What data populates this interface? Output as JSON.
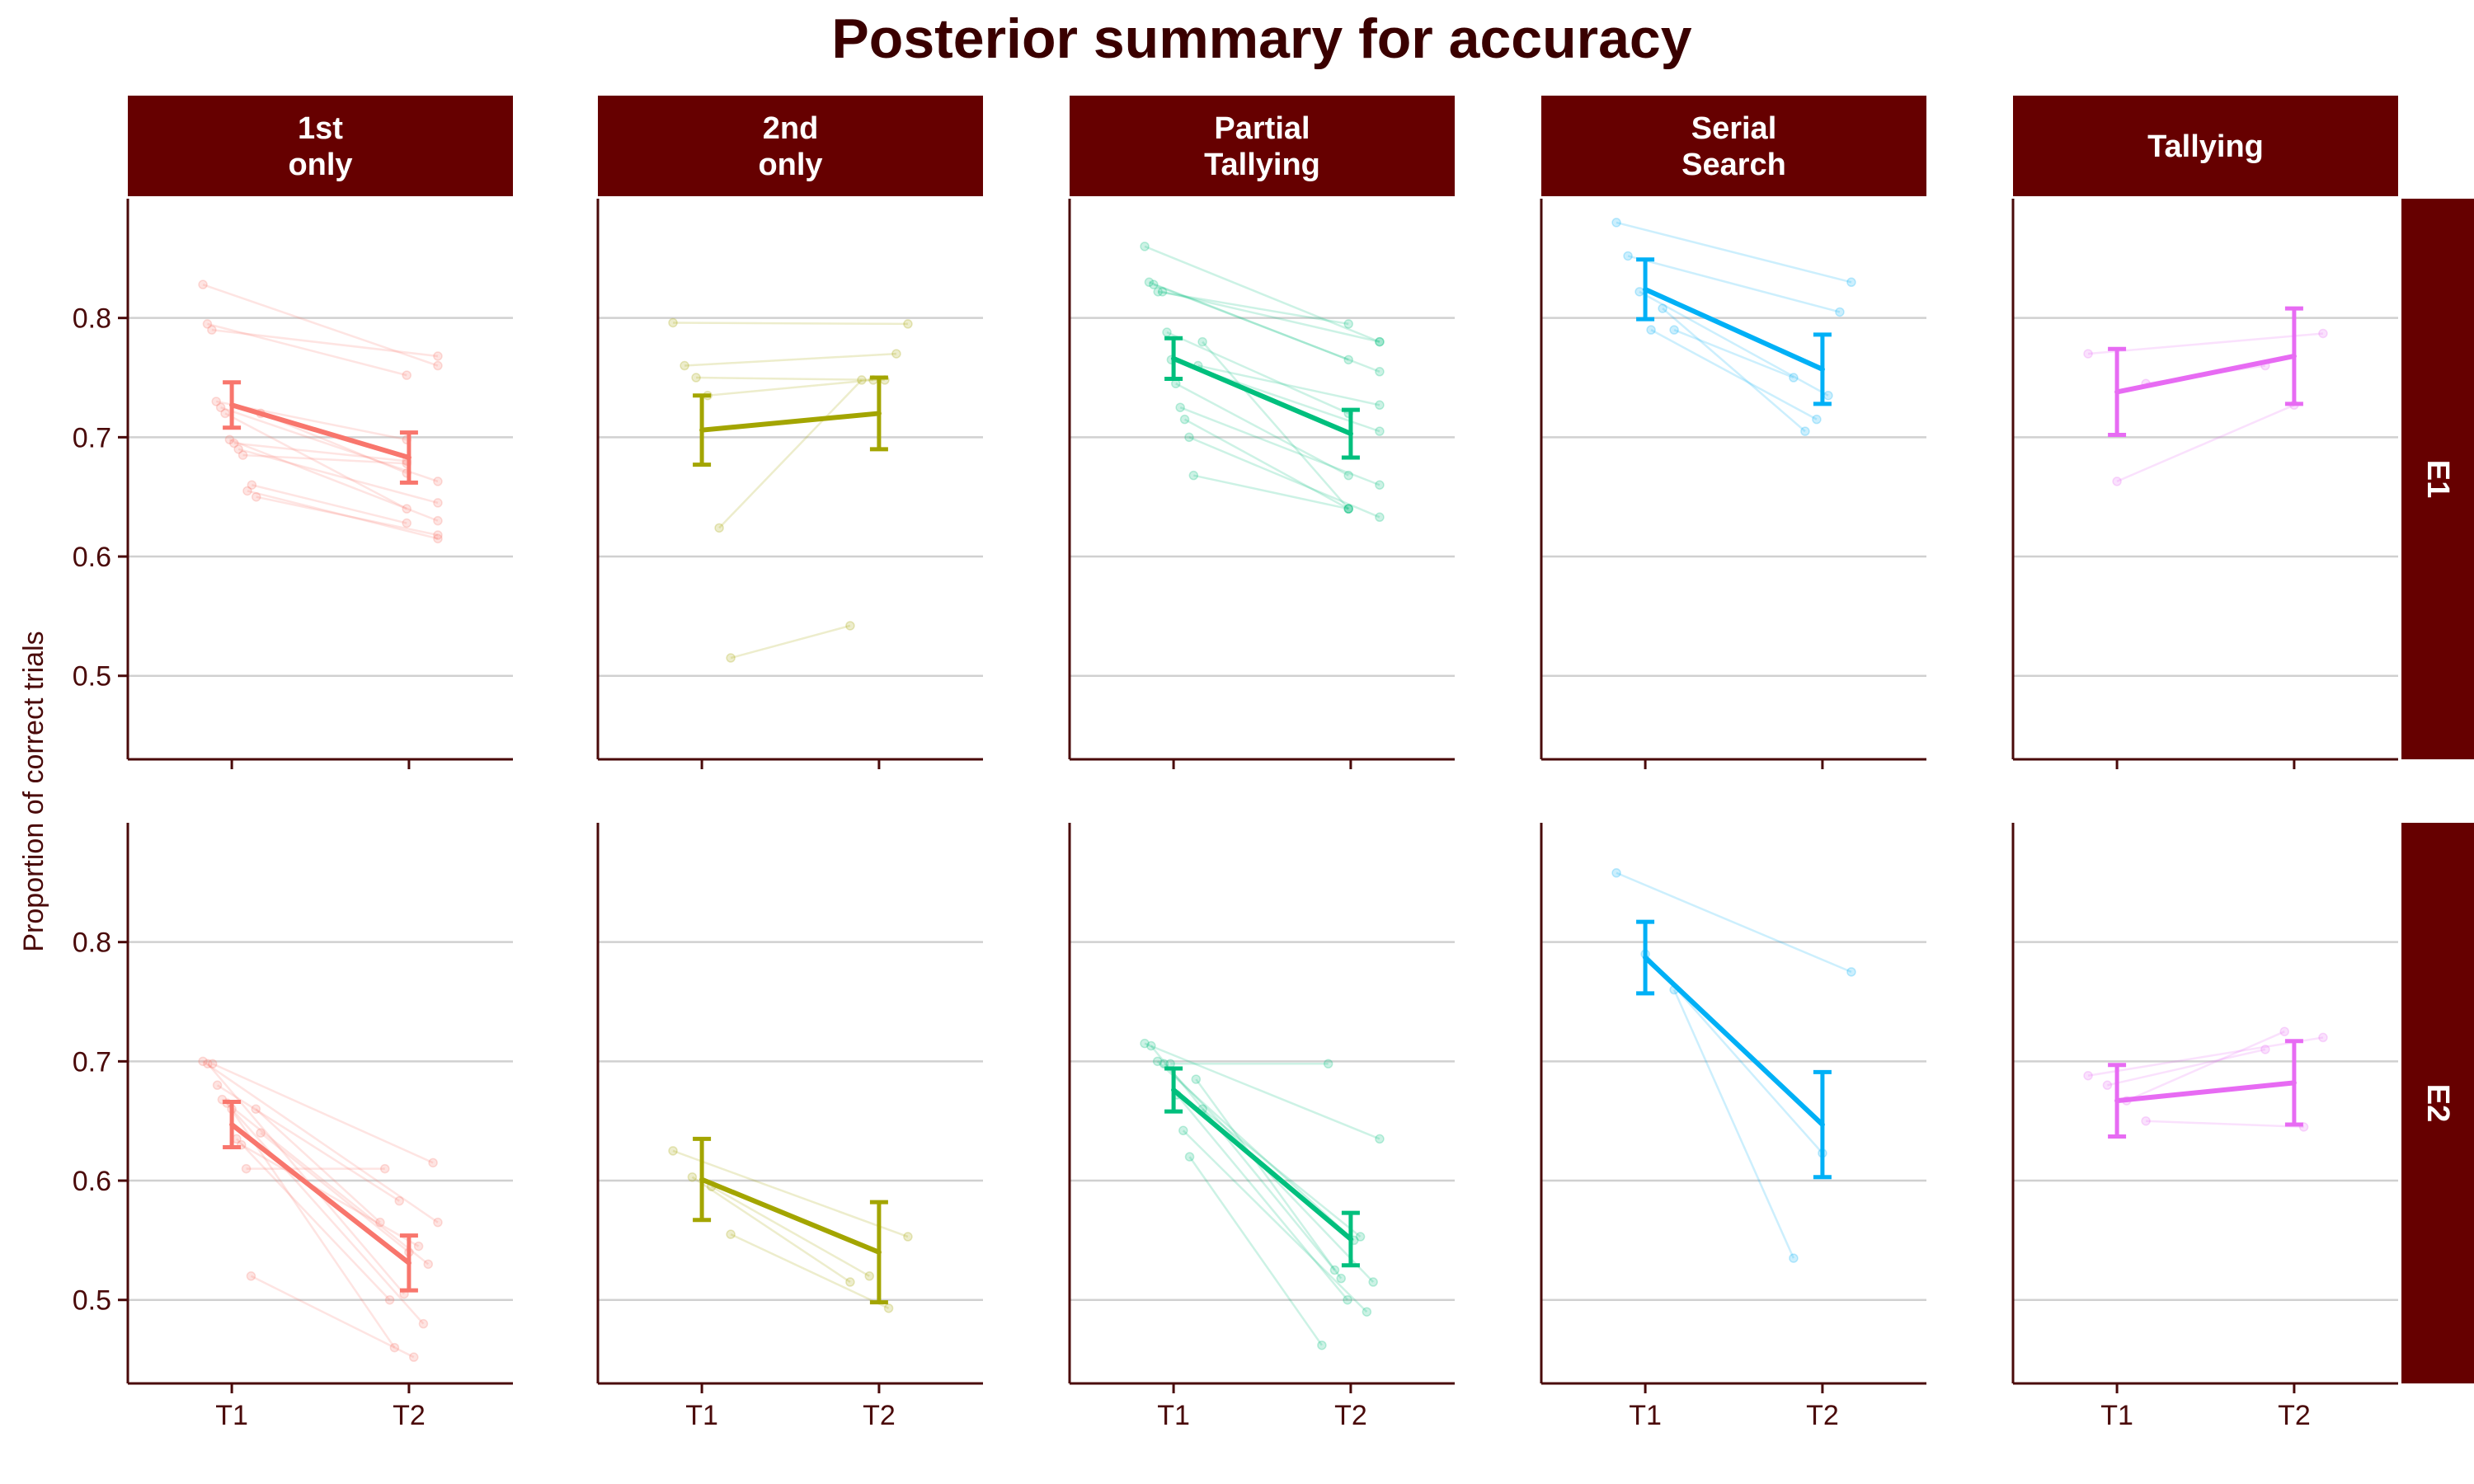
{
  "chart_data": {
    "type": "line",
    "title": "Posterior summary for accuracy",
    "ylabel": "Proportion of correct trials",
    "xlabel": "",
    "x_categories": [
      "T1",
      "T2"
    ],
    "ylim": [
      0.43,
      0.9
    ],
    "yticks": [
      0.5,
      0.6,
      0.7,
      0.8
    ],
    "ytick_labels": [
      "0.5",
      "0.6",
      "0.7",
      "0.8"
    ],
    "grid": "horizontal",
    "legend": "none",
    "colors": {
      "1st only": "#F8766D",
      "2nd only": "#A3A500",
      "Partial Tallying": "#00BF7D",
      "Serial Search": "#00B0F6",
      "Tallying": "#E76BF3",
      "strip_background": "#660000",
      "axis": "#4a0a0a",
      "grid": "#d0d0d0"
    },
    "columns": [
      {
        "key": "1st only",
        "label_lines": [
          "1st",
          "only"
        ]
      },
      {
        "key": "2nd only",
        "label_lines": [
          "2nd",
          "only"
        ]
      },
      {
        "key": "Partial Tallying",
        "label_lines": [
          "Partial",
          "Tallying"
        ]
      },
      {
        "key": "Serial Search",
        "label_lines": [
          "Serial",
          "Search"
        ]
      },
      {
        "key": "Tallying",
        "label_lines": [
          "Tallying"
        ]
      }
    ],
    "rows": [
      "E1",
      "E2"
    ],
    "panels": [
      {
        "row": "E1",
        "column": "1st only",
        "summary": {
          "T1": {
            "mean": 0.727,
            "lower": 0.708,
            "upper": 0.746
          },
          "T2": {
            "mean": 0.683,
            "lower": 0.662,
            "upper": 0.704
          }
        },
        "participants": [
          [
            0.828,
            0.76
          ],
          [
            0.795,
            0.752
          ],
          [
            0.79,
            0.768
          ],
          [
            0.73,
            0.698
          ],
          [
            0.725,
            0.663
          ],
          [
            0.72,
            0.64
          ],
          [
            0.698,
            0.63
          ],
          [
            0.695,
            0.68
          ],
          [
            0.69,
            0.645
          ],
          [
            0.685,
            0.678
          ],
          [
            0.655,
            0.615
          ],
          [
            0.66,
            0.628
          ],
          [
            0.65,
            0.618
          ],
          [
            0.72,
            0.67
          ]
        ]
      },
      {
        "row": "E1",
        "column": "2nd only",
        "summary": {
          "T1": {
            "mean": 0.706,
            "lower": 0.677,
            "upper": 0.735
          },
          "T2": {
            "mean": 0.72,
            "lower": 0.69,
            "upper": 0.75
          }
        },
        "participants": [
          [
            0.796,
            0.795
          ],
          [
            0.76,
            0.77
          ],
          [
            0.75,
            0.748
          ],
          [
            0.735,
            0.748
          ],
          [
            0.624,
            0.748
          ],
          [
            0.515,
            0.542
          ]
        ]
      },
      {
        "row": "E1",
        "column": "Partial Tallying",
        "summary": {
          "T1": {
            "mean": 0.766,
            "lower": 0.749,
            "upper": 0.783
          },
          "T2": {
            "mean": 0.703,
            "lower": 0.683,
            "upper": 0.723
          }
        },
        "participants": [
          [
            0.86,
            0.78
          ],
          [
            0.83,
            0.765
          ],
          [
            0.828,
            0.755
          ],
          [
            0.822,
            0.795
          ],
          [
            0.822,
            0.78
          ],
          [
            0.788,
            0.72
          ],
          [
            0.765,
            0.705
          ],
          [
            0.745,
            0.668
          ],
          [
            0.725,
            0.66
          ],
          [
            0.715,
            0.64
          ],
          [
            0.7,
            0.633
          ],
          [
            0.668,
            0.64
          ],
          [
            0.76,
            0.727
          ],
          [
            0.78,
            0.64
          ]
        ]
      },
      {
        "row": "E1",
        "column": "Serial Search",
        "summary": {
          "T1": {
            "mean": 0.824,
            "lower": 0.799,
            "upper": 0.849
          },
          "T2": {
            "mean": 0.757,
            "lower": 0.728,
            "upper": 0.786
          }
        },
        "participants": [
          [
            0.88,
            0.83
          ],
          [
            0.852,
            0.805
          ],
          [
            0.822,
            0.735
          ],
          [
            0.79,
            0.715
          ],
          [
            0.808,
            0.705
          ],
          [
            0.79,
            0.75
          ]
        ]
      },
      {
        "row": "E1",
        "column": "Tallying",
        "summary": {
          "T1": {
            "mean": 0.738,
            "lower": 0.702,
            "upper": 0.774
          },
          "T2": {
            "mean": 0.768,
            "lower": 0.728,
            "upper": 0.808
          }
        },
        "participants": [
          [
            0.77,
            0.787
          ],
          [
            0.663,
            0.727
          ],
          [
            0.745,
            0.76
          ]
        ]
      },
      {
        "row": "E2",
        "column": "1st only",
        "summary": {
          "T1": {
            "mean": 0.647,
            "lower": 0.628,
            "upper": 0.666
          },
          "T2": {
            "mean": 0.531,
            "lower": 0.508,
            "upper": 0.554
          }
        },
        "participants": [
          [
            0.7,
            0.565
          ],
          [
            0.698,
            0.505
          ],
          [
            0.698,
            0.615
          ],
          [
            0.68,
            0.583
          ],
          [
            0.668,
            0.53
          ],
          [
            0.665,
            0.46
          ],
          [
            0.66,
            0.48
          ],
          [
            0.635,
            0.5
          ],
          [
            0.63,
            0.545
          ],
          [
            0.61,
            0.61
          ],
          [
            0.52,
            0.452
          ],
          [
            0.66,
            0.565
          ],
          [
            0.64,
            0.54
          ]
        ]
      },
      {
        "row": "E2",
        "column": "2nd only",
        "summary": {
          "T1": {
            "mean": 0.601,
            "lower": 0.567,
            "upper": 0.635
          },
          "T2": {
            "mean": 0.54,
            "lower": 0.498,
            "upper": 0.582
          }
        },
        "participants": [
          [
            0.625,
            0.553
          ],
          [
            0.603,
            0.515
          ],
          [
            0.595,
            0.52
          ],
          [
            0.555,
            0.493
          ]
        ]
      },
      {
        "row": "E2",
        "column": "Partial Tallying",
        "summary": {
          "T1": {
            "mean": 0.676,
            "lower": 0.658,
            "upper": 0.694
          },
          "T2": {
            "mean": 0.551,
            "lower": 0.529,
            "upper": 0.573
          }
        },
        "participants": [
          [
            0.715,
            0.635
          ],
          [
            0.713,
            0.525
          ],
          [
            0.7,
            0.55
          ],
          [
            0.698,
            0.515
          ],
          [
            0.698,
            0.698
          ],
          [
            0.672,
            0.5
          ],
          [
            0.642,
            0.49
          ],
          [
            0.62,
            0.462
          ],
          [
            0.685,
            0.518
          ],
          [
            0.66,
            0.553
          ]
        ]
      },
      {
        "row": "E2",
        "column": "Serial Search",
        "summary": {
          "T1": {
            "mean": 0.787,
            "lower": 0.757,
            "upper": 0.817
          },
          "T2": {
            "mean": 0.647,
            "lower": 0.603,
            "upper": 0.691
          }
        },
        "participants": [
          [
            0.858,
            0.775
          ],
          [
            0.79,
            0.623
          ],
          [
            0.76,
            0.535
          ]
        ]
      },
      {
        "row": "E2",
        "column": "Tallying",
        "summary": {
          "T1": {
            "mean": 0.667,
            "lower": 0.637,
            "upper": 0.697
          },
          "T2": {
            "mean": 0.682,
            "lower": 0.647,
            "upper": 0.717
          }
        },
        "participants": [
          [
            0.688,
            0.72
          ],
          [
            0.68,
            0.71
          ],
          [
            0.667,
            0.725
          ],
          [
            0.65,
            0.645
          ]
        ]
      }
    ]
  }
}
